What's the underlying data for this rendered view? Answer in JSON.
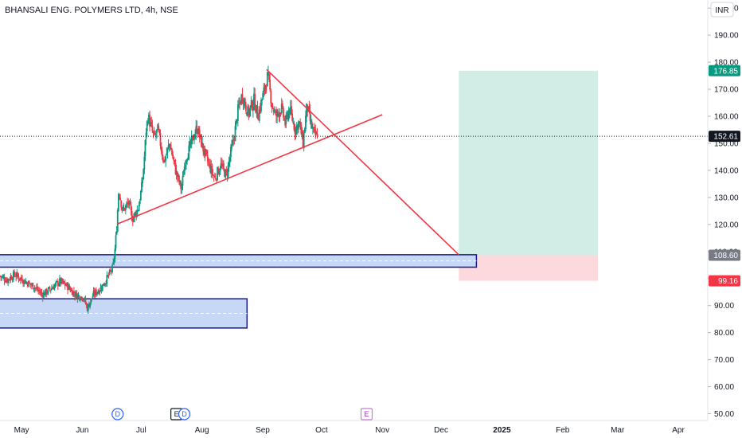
{
  "header": {
    "title": "BHANSALI ENG. POLYMERS LTD, 4h, NSE",
    "currency_button": "INR"
  },
  "colors": {
    "up": "#089981",
    "down": "#f23645",
    "trendline": "#f23645",
    "zone_border": "#1a1a8c",
    "zone_fill": "#c7d8f7",
    "profit_fill": "#d1ede6",
    "loss_fill": "#fbd9dc",
    "price_line": "#131722",
    "tag_current": "#131722",
    "tag_target": "#089981",
    "tag_entry": "#787b86",
    "tag_stop": "#f23645",
    "event_dividend": "#2962ff",
    "event_earnings_past": "#131722",
    "event_earnings_future": "#9c27b0"
  },
  "price_tags": {
    "target": "176.85",
    "current": "152.61",
    "entry": "108.60",
    "stop": "99.16"
  },
  "events": [
    {
      "label": "D",
      "kind": "dividend",
      "date": "2024-06-19"
    },
    {
      "label": "E",
      "kind": "earnings-past",
      "date": "2024-07-19"
    },
    {
      "label": "D",
      "kind": "dividend",
      "date": "2024-07-23"
    },
    {
      "label": "E",
      "kind": "earnings-future",
      "date": "2024-10-24"
    }
  ],
  "chart_data": {
    "type": "candlestick",
    "title": "BHANSALI ENG. POLYMERS LTD, 4h, NSE",
    "currency": "INR",
    "x_range": [
      "2024-04-20",
      "2025-04-16"
    ],
    "ylim": [
      47.5,
      203
    ],
    "y_ticks": [
      50,
      60,
      70,
      80,
      90,
      100,
      110,
      120,
      130,
      140,
      150,
      160,
      170,
      180,
      190,
      200
    ],
    "y_tick_labels": [
      "50.00",
      "60.00",
      "70.00",
      "80.00",
      "90.00",
      "100.00",
      "110.00",
      "120.00",
      "130.00",
      "140.00",
      "150.00",
      "160.00",
      "170.00",
      "180.00",
      "190.00",
      "200.00"
    ],
    "x_ticks": [
      {
        "label": "May",
        "date": "2024-05-01"
      },
      {
        "label": "Jun",
        "date": "2024-06-01"
      },
      {
        "label": "Jul",
        "date": "2024-07-01"
      },
      {
        "label": "Aug",
        "date": "2024-08-01"
      },
      {
        "label": "Sep",
        "date": "2024-09-01"
      },
      {
        "label": "Oct",
        "date": "2024-10-01"
      },
      {
        "label": "Nov",
        "date": "2024-11-01"
      },
      {
        "label": "Dec",
        "date": "2024-12-01"
      },
      {
        "label": "2025",
        "date": "2025-01-01"
      },
      {
        "label": "Feb",
        "date": "2025-02-01"
      },
      {
        "label": "Mar",
        "date": "2025-03-01"
      },
      {
        "label": "Apr",
        "date": "2025-04-01"
      }
    ],
    "price_path": [
      [
        "2024-04-20",
        101
      ],
      [
        "2024-04-24",
        99.5
      ],
      [
        "2024-04-28",
        101.5
      ],
      [
        "2024-05-03",
        99
      ],
      [
        "2024-05-08",
        97
      ],
      [
        "2024-05-12",
        94
      ],
      [
        "2024-05-16",
        96
      ],
      [
        "2024-05-21",
        99
      ],
      [
        "2024-05-25",
        97
      ],
      [
        "2024-05-29",
        94
      ],
      [
        "2024-06-02",
        93
      ],
      [
        "2024-06-04",
        89
      ],
      [
        "2024-06-07",
        94
      ],
      [
        "2024-06-11",
        96.5
      ],
      [
        "2024-06-14",
        100
      ],
      [
        "2024-06-17",
        104
      ],
      [
        "2024-06-18",
        110
      ],
      [
        "2024-06-19",
        119
      ],
      [
        "2024-06-20",
        133
      ],
      [
        "2024-06-22",
        125
      ],
      [
        "2024-06-25",
        128
      ],
      [
        "2024-06-27",
        122
      ],
      [
        "2024-06-30",
        126
      ],
      [
        "2024-07-02",
        135
      ],
      [
        "2024-07-03",
        144
      ],
      [
        "2024-07-04",
        155
      ],
      [
        "2024-07-05",
        160
      ],
      [
        "2024-07-08",
        152
      ],
      [
        "2024-07-10",
        155
      ],
      [
        "2024-07-13",
        143
      ],
      [
        "2024-07-16",
        150
      ],
      [
        "2024-07-19",
        140
      ],
      [
        "2024-07-22",
        133
      ],
      [
        "2024-07-24",
        144
      ],
      [
        "2024-07-27",
        150
      ],
      [
        "2024-07-30",
        156
      ],
      [
        "2024-08-02",
        148
      ],
      [
        "2024-08-05",
        142
      ],
      [
        "2024-08-08",
        137
      ],
      [
        "2024-08-11",
        142
      ],
      [
        "2024-08-14",
        138
      ],
      [
        "2024-08-16",
        146
      ],
      [
        "2024-08-18",
        153
      ],
      [
        "2024-08-20",
        163
      ],
      [
        "2024-08-22",
        168
      ],
      [
        "2024-08-25",
        161
      ],
      [
        "2024-08-28",
        166
      ],
      [
        "2024-08-30",
        160
      ],
      [
        "2024-09-02",
        169
      ],
      [
        "2024-09-04",
        175
      ],
      [
        "2024-09-06",
        165
      ],
      [
        "2024-09-08",
        160
      ],
      [
        "2024-09-11",
        163
      ],
      [
        "2024-09-13",
        157
      ],
      [
        "2024-09-15",
        163
      ],
      [
        "2024-09-18",
        155
      ],
      [
        "2024-09-20",
        158
      ],
      [
        "2024-09-22",
        150
      ],
      [
        "2024-09-24",
        164
      ],
      [
        "2024-09-26",
        157
      ],
      [
        "2024-09-28",
        153
      ],
      [
        "2024-09-29",
        152.6
      ]
    ],
    "current_price": 152.61,
    "position": {
      "type": "long",
      "entry": 108.6,
      "target": 176.85,
      "stop": 99.16,
      "start": "2024-12-10",
      "end": "2025-02-19"
    },
    "zones": [
      {
        "top": 108.8,
        "bottom": 104.2,
        "mid": 106.5,
        "start": "2024-04-20",
        "end": "2024-12-19"
      },
      {
        "top": 92.5,
        "bottom": 81.7,
        "mid": 87.1,
        "start": "2024-04-20",
        "end": "2024-08-24"
      }
    ],
    "trendlines": [
      {
        "x1": "2024-06-19",
        "y1": 120.2,
        "x2": "2024-11-01",
        "y2": 160.6
      },
      {
        "x1": "2024-09-03",
        "y1": 177.3,
        "x2": "2024-12-10",
        "y2": 108.8
      }
    ]
  }
}
